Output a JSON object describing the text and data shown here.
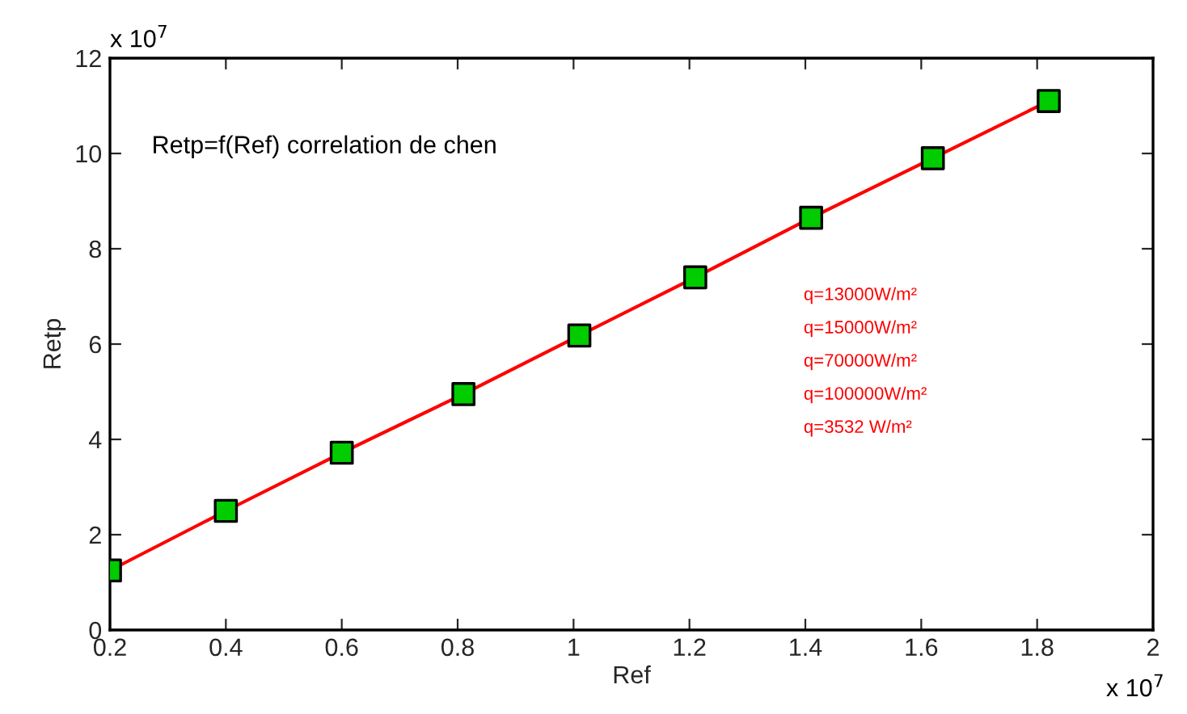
{
  "chart_data": {
    "type": "line",
    "xlabel": "Ref",
    "ylabel": "Retp",
    "x": [
      0.2,
      0.4,
      0.6,
      0.81,
      1.01,
      1.21,
      1.41,
      1.62,
      1.82
    ],
    "series": [
      {
        "color": "#ff0000",
        "colors": [
          "#00cc00",
          "#00cc00",
          "#00cc00",
          "#00cc00",
          "#00cc00",
          "#00cc00",
          "#00cc00",
          "#00cc00",
          "#00cc00"
        ],
        "values": [
          1.25,
          2.5,
          3.72,
          4.95,
          6.18,
          7.4,
          8.65,
          9.9,
          11.1
        ]
      }
    ],
    "xlim": [
      0.2,
      2
    ],
    "xticks": [
      0.2,
      0.4,
      0.6,
      0.8,
      1,
      1.2,
      1.4,
      1.6,
      1.8,
      2
    ],
    "ylim": [
      0,
      12
    ],
    "yticks": [
      0,
      2,
      4,
      6,
      8,
      10,
      12
    ],
    "marker": "square",
    "line_style": "solid",
    "grid": false,
    "legend": false,
    "annotations": [
      "x 10$^{7}$",
      "x 10$^{7}$",
      "Retp=f(Ref) correlation de chen",
      "q=13000W/m²",
      "q=15000W/m²",
      "q=70000W/m²",
      "q=100000W/m²",
      "q=3532 W/m²"
    ]
  }
}
